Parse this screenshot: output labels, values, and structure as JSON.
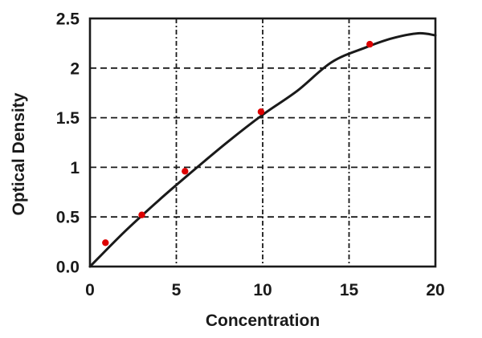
{
  "chart_data": {
    "type": "scatter",
    "title": "",
    "xlabel": "Concentration",
    "ylabel": "Optical Density",
    "xlim": [
      0,
      20
    ],
    "ylim": [
      0,
      2.5
    ],
    "xticks": {
      "values": [
        0,
        5,
        10,
        15,
        20
      ],
      "labels": [
        "0",
        "5",
        "10",
        "15",
        "20"
      ]
    },
    "yticks": {
      "values": [
        0,
        0.5,
        1,
        1.5,
        2,
        2.5
      ],
      "labels": [
        "0.0",
        "0.5",
        "1",
        "1.5",
        "2",
        "2.5"
      ]
    },
    "grid": {
      "on": true,
      "vertical_at": [
        5,
        10,
        15
      ],
      "horizontal_at": [
        0.5,
        1,
        1.5,
        2
      ],
      "style": "dashed",
      "color": "#1a1a1a"
    },
    "frame_color": "#1a1a1a",
    "legend": "none",
    "series": [
      {
        "name": "fitted-curve",
        "type": "line",
        "color": "#1a1a1a",
        "x": [
          0,
          2,
          4,
          6,
          8,
          10,
          12,
          14,
          16,
          17.5,
          19,
          20
        ],
        "y": [
          0,
          0.35,
          0.67,
          0.97,
          1.26,
          1.53,
          1.77,
          2.06,
          2.21,
          2.3,
          2.35,
          2.33
        ]
      },
      {
        "name": "data-points",
        "type": "scatter",
        "marker": "circle",
        "color": "#dd0000",
        "x": [
          0.9,
          3.0,
          5.5,
          9.9,
          16.2
        ],
        "y": [
          0.24,
          0.52,
          0.96,
          1.56,
          2.24
        ]
      }
    ]
  }
}
